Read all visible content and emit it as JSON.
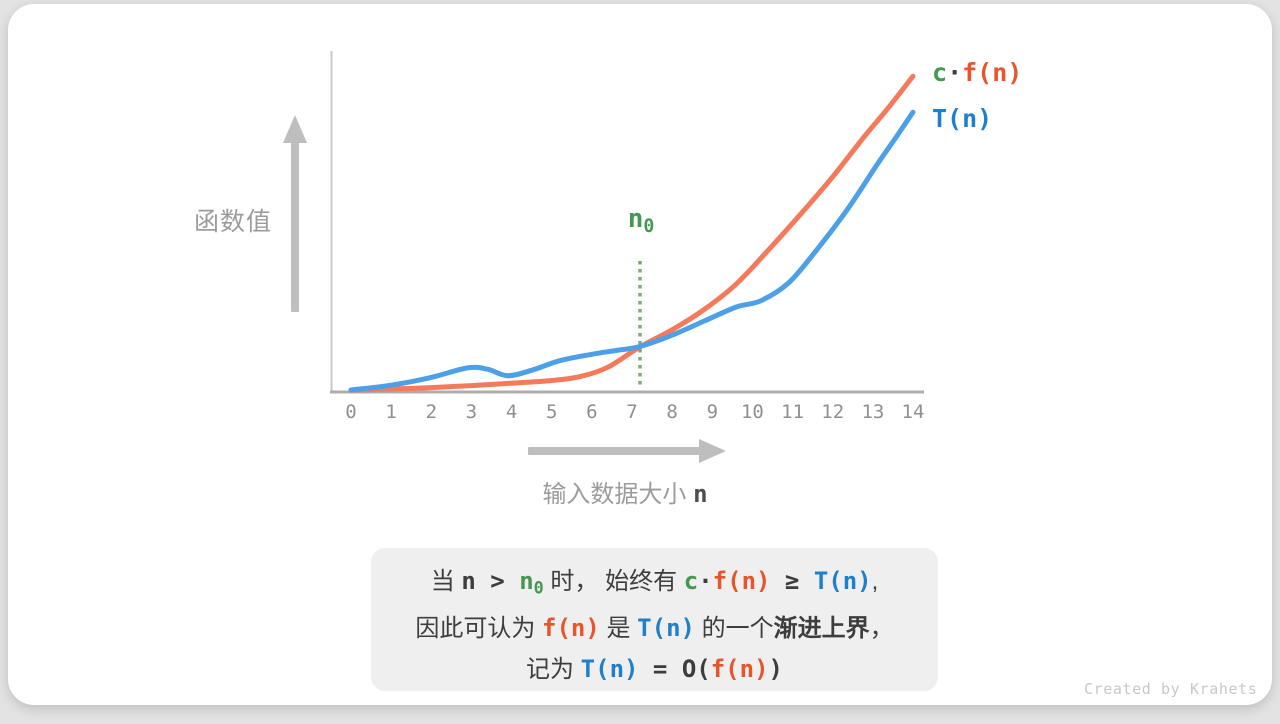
{
  "colors": {
    "page_bg": "#E3E3E3",
    "card_bg": "#FFFFFF",
    "box_bg": "#EFEFEF",
    "dark_text": "#3D3D3D",
    "gray_label": "#9C9C9C",
    "gray_axis_x": "#ADADAD",
    "gray_axis_y": "#C9C9C9",
    "gray_arrow": "#BEBEBE",
    "tick_label": "#8F8F8F",
    "orange_text": "#E8552B",
    "blue_text": "#1E80CC",
    "green_text": "#44984F",
    "watermark": "#C8C8C8"
  },
  "chart": {
    "ylabel": "函数值",
    "xlabel_segments": [
      {
        "t": "输入数据大小 ",
        "s": "gl"
      },
      {
        "t": "n",
        "s": "mdg"
      }
    ],
    "legend1_segments": [
      {
        "t": "c",
        "s": "mg"
      },
      {
        "t": "·",
        "s": "md"
      },
      {
        "t": "f(n)",
        "s": "mo"
      }
    ],
    "legend2_segments": [
      {
        "t": "T(n)",
        "s": "mb"
      }
    ],
    "threshold_segments": [
      {
        "t": "n",
        "s": "mg"
      },
      {
        "t": "0",
        "s": "mg",
        "sub": true
      }
    ]
  },
  "chart_data": {
    "type": "line",
    "title": "",
    "xlabel": "输入数据大小 n",
    "ylabel": "函数值",
    "xlim": [
      0,
      14
    ],
    "ylim": [
      0,
      100
    ],
    "y_axis_labeled": false,
    "grid": false,
    "legend_position": "top-right",
    "x_ticks": [
      0,
      1,
      2,
      3,
      4,
      5,
      6,
      7,
      8,
      9,
      10,
      11,
      12,
      13,
      14
    ],
    "threshold": {
      "label": "n0",
      "x": 7.2,
      "color": "#76AC7A"
    },
    "series": [
      {
        "name": "c·f(n)",
        "color": "#F5795B",
        "points": [
          [
            0,
            0.3
          ],
          [
            1,
            0.6
          ],
          [
            2,
            1.0
          ],
          [
            3,
            1.6
          ],
          [
            4,
            2.3
          ],
          [
            5,
            3.1
          ],
          [
            5.7,
            4.2
          ],
          [
            6.4,
            7.0
          ],
          [
            7.2,
            13.0
          ],
          [
            8,
            18.0
          ],
          [
            8.8,
            24.0
          ],
          [
            9.6,
            31.5
          ],
          [
            10.4,
            41.5
          ],
          [
            11.2,
            52.0
          ],
          [
            12,
            63.0
          ],
          [
            12.8,
            75.0
          ],
          [
            13.4,
            83.5
          ],
          [
            14,
            92.6
          ]
        ]
      },
      {
        "name": "T(n)",
        "color": "#4BA0E8",
        "points": [
          [
            0,
            0.3
          ],
          [
            1,
            1.7
          ],
          [
            2,
            4.0
          ],
          [
            2.9,
            6.8
          ],
          [
            3.4,
            6.4
          ],
          [
            3.9,
            4.5
          ],
          [
            4.5,
            6.1
          ],
          [
            5.2,
            8.9
          ],
          [
            6,
            10.8
          ],
          [
            6.6,
            11.9
          ],
          [
            7.2,
            13.1
          ],
          [
            8,
            16.4
          ],
          [
            8.8,
            20.6
          ],
          [
            9.6,
            24.7
          ],
          [
            10.2,
            26.5
          ],
          [
            10.9,
            31.8
          ],
          [
            11.6,
            41.5
          ],
          [
            12.4,
            54.0
          ],
          [
            13.1,
            66.5
          ],
          [
            13.6,
            75.0
          ],
          [
            14,
            82.0
          ]
        ]
      }
    ]
  },
  "caption": {
    "lines": [
      {
        "segments": [
          {
            "t": "当 ",
            "s": "zh"
          },
          {
            "t": "n",
            "s": "md"
          },
          {
            "t": " > ",
            "s": "md"
          },
          {
            "t": "n",
            "s": "mg"
          },
          {
            "t": "0",
            "s": "mg",
            "sub": true
          },
          {
            "t": " 时， ",
            "s": "zh"
          },
          {
            "t": "始终有 ",
            "s": "zh"
          },
          {
            "t": "c",
            "s": "mg"
          },
          {
            "t": "·",
            "s": "md"
          },
          {
            "t": "f(n)",
            "s": "mo"
          },
          {
            "t": " ≥ ",
            "s": "md"
          },
          {
            "t": "T(n)",
            "s": "mb"
          },
          {
            "t": ",",
            "s": "zh"
          }
        ]
      },
      {
        "segments": [
          {
            "t": "因此可认为 ",
            "s": "zh"
          },
          {
            "t": "f(n)",
            "s": "mo"
          },
          {
            "t": " 是 ",
            "s": "zh"
          },
          {
            "t": "T(n)",
            "s": "mb"
          },
          {
            "t": " 的一个",
            "s": "zh"
          },
          {
            "t": "渐进上界",
            "s": "zhb"
          },
          {
            "t": "，",
            "s": "zh"
          }
        ]
      },
      {
        "segments": [
          {
            "t": "记为 ",
            "s": "zh"
          },
          {
            "t": "T(n)",
            "s": "mb"
          },
          {
            "t": " = ",
            "s": "md"
          },
          {
            "t": "O(",
            "s": "md"
          },
          {
            "t": "f(n)",
            "s": "mo"
          },
          {
            "t": ")",
            "s": "md"
          }
        ]
      }
    ]
  },
  "watermark": "Created by Krahets"
}
